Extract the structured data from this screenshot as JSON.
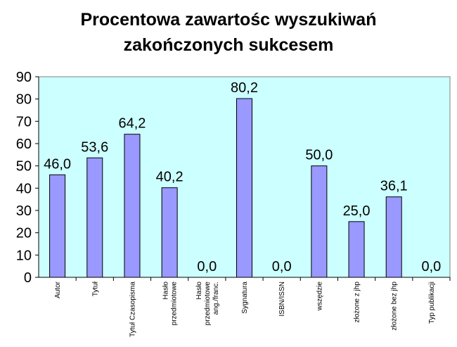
{
  "chart_data": {
    "type": "bar",
    "title_lines": [
      "Procentowa zawartośc wyszukiwań",
      "zakończonych sukcesem"
    ],
    "categories": [
      [
        "Autor"
      ],
      [
        "Tytuł"
      ],
      [
        "Tytuł Czasopisma"
      ],
      [
        "Hasło",
        "przedmiotowe"
      ],
      [
        "Hasło",
        "przedmiotowe",
        "ang./franc."
      ],
      [
        "Sygnatura"
      ],
      [
        "ISBN/ISSN"
      ],
      [
        "wszędzie"
      ],
      [
        "złożone z jhp"
      ],
      [
        "złożone bez jhp"
      ],
      [
        "Typ publikacji"
      ]
    ],
    "values": [
      46.0,
      53.6,
      64.2,
      40.2,
      0.0,
      80.2,
      0.0,
      50.0,
      25.0,
      36.1,
      0.0
    ],
    "data_labels": [
      "46,0",
      "53,6",
      "64,2",
      "40,2",
      "0,0",
      "80,2",
      "0,0",
      "50,0",
      "25,0",
      "36,1",
      "0,0"
    ],
    "y_ticks": [
      "0",
      "10",
      "20",
      "30",
      "40",
      "50",
      "60",
      "70",
      "80",
      "90"
    ],
    "ylim": [
      0,
      90
    ],
    "xlabel": "",
    "ylabel": "",
    "grid": false,
    "legend": "none",
    "colors": {
      "plot_background": "#ccffff",
      "bar_fill": "#9999ff",
      "bar_stroke": "#000000"
    }
  }
}
